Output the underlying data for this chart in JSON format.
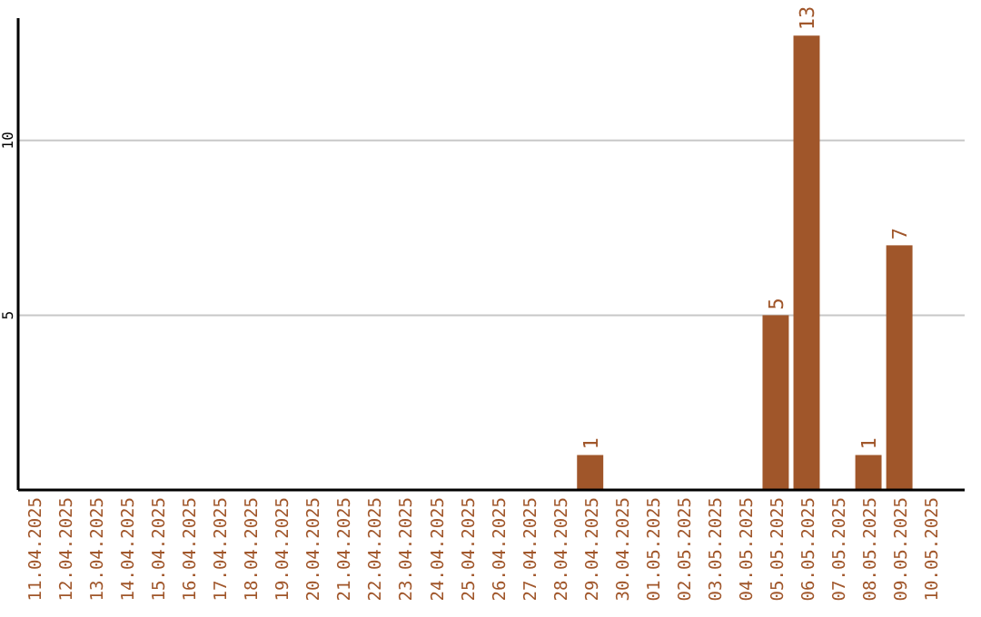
{
  "chart_data": {
    "type": "bar",
    "categories": [
      "11.04.2025",
      "12.04.2025",
      "13.04.2025",
      "14.04.2025",
      "15.04.2025",
      "16.04.2025",
      "17.04.2025",
      "18.04.2025",
      "19.04.2025",
      "20.04.2025",
      "21.04.2025",
      "22.04.2025",
      "23.04.2025",
      "24.04.2025",
      "25.04.2025",
      "26.04.2025",
      "27.04.2025",
      "28.04.2025",
      "29.04.2025",
      "30.04.2025",
      "01.05.2025",
      "02.05.2025",
      "03.05.2025",
      "04.05.2025",
      "05.05.2025",
      "06.05.2025",
      "07.05.2025",
      "08.05.2025",
      "09.05.2025",
      "10.05.2025"
    ],
    "values": [
      0,
      0,
      0,
      0,
      0,
      0,
      0,
      0,
      0,
      0,
      0,
      0,
      0,
      0,
      0,
      0,
      0,
      0,
      1,
      0,
      0,
      0,
      0,
      0,
      5,
      13,
      0,
      1,
      7,
      0
    ],
    "value_labels": [
      null,
      null,
      null,
      null,
      null,
      null,
      null,
      null,
      null,
      null,
      null,
      null,
      null,
      null,
      null,
      null,
      null,
      null,
      "1",
      null,
      null,
      null,
      null,
      null,
      "5",
      "13",
      null,
      "1",
      "7",
      null
    ],
    "color": "#a0562a",
    "ylim": [
      0,
      13.5
    ],
    "yticks": [
      5,
      10
    ],
    "grid": "y"
  }
}
